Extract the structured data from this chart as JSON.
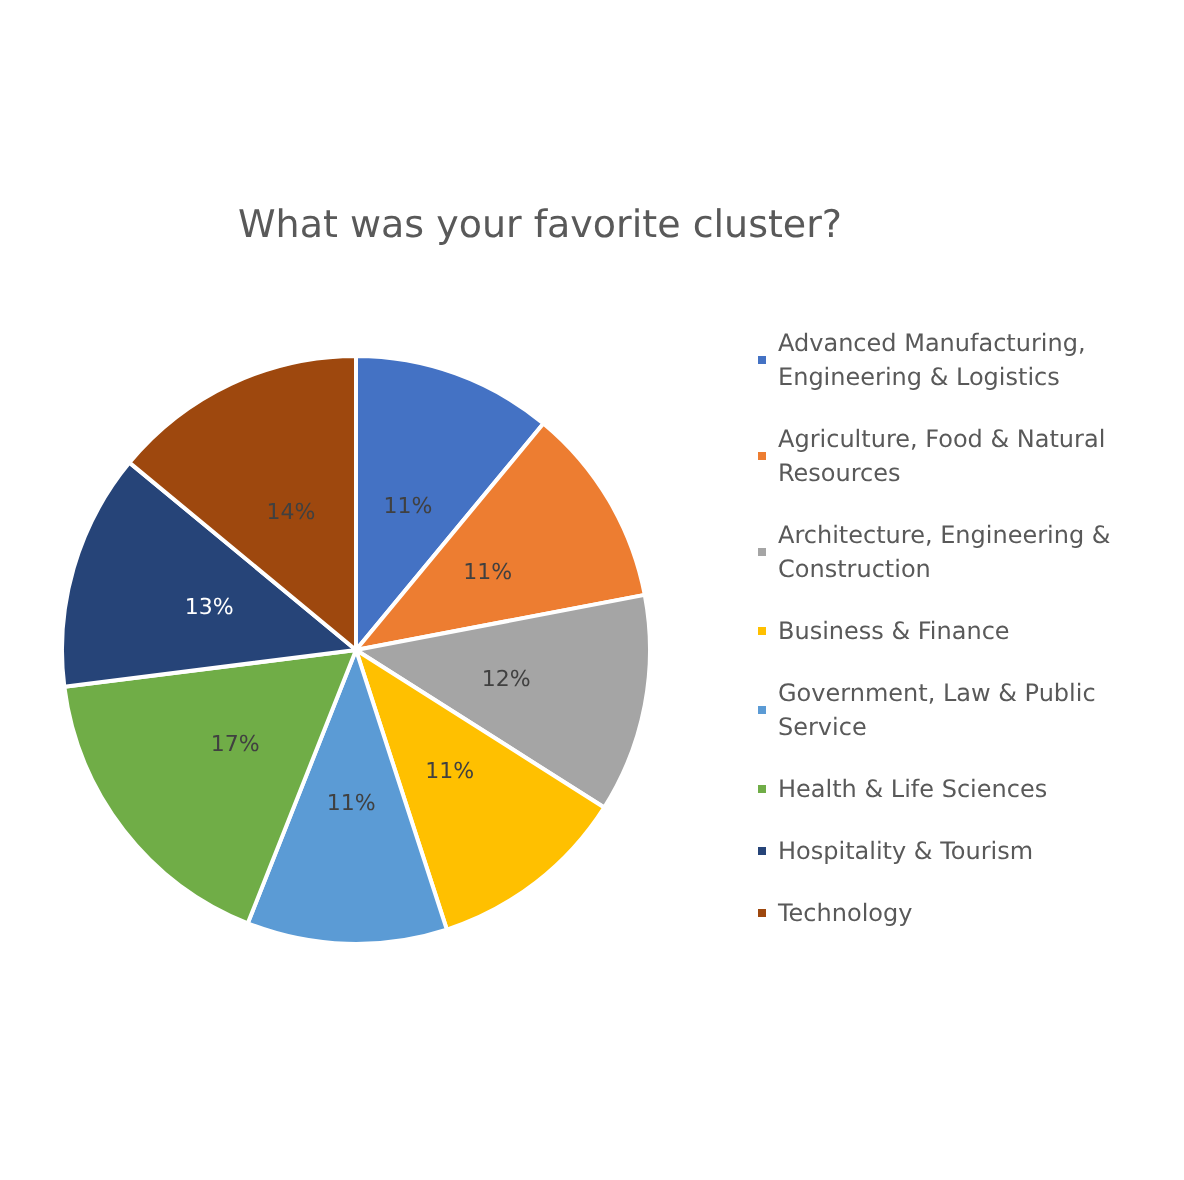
{
  "chart_data": {
    "type": "pie",
    "title": "What was your favorite cluster?",
    "categories": [
      "Advanced Manufacturing, Engineering & Logistics",
      "Agriculture, Food & Natural Resources",
      "Architecture, Engineering & Construction",
      "Business & Finance",
      "Government, Law & Public Service",
      "Health & Life Sciences",
      "Hospitality & Tourism",
      "Technology"
    ],
    "values": [
      11,
      11,
      12,
      11,
      11,
      17,
      13,
      14
    ],
    "value_labels": [
      "11%",
      "11%",
      "12%",
      "11%",
      "11%",
      "17%",
      "13%",
      "14%"
    ],
    "colors": [
      "#4472c4",
      "#ed7d31",
      "#a5a5a5",
      "#ffc000",
      "#5b9bd5",
      "#70ad47",
      "#264478",
      "#9e480e"
    ],
    "legend": "right"
  }
}
